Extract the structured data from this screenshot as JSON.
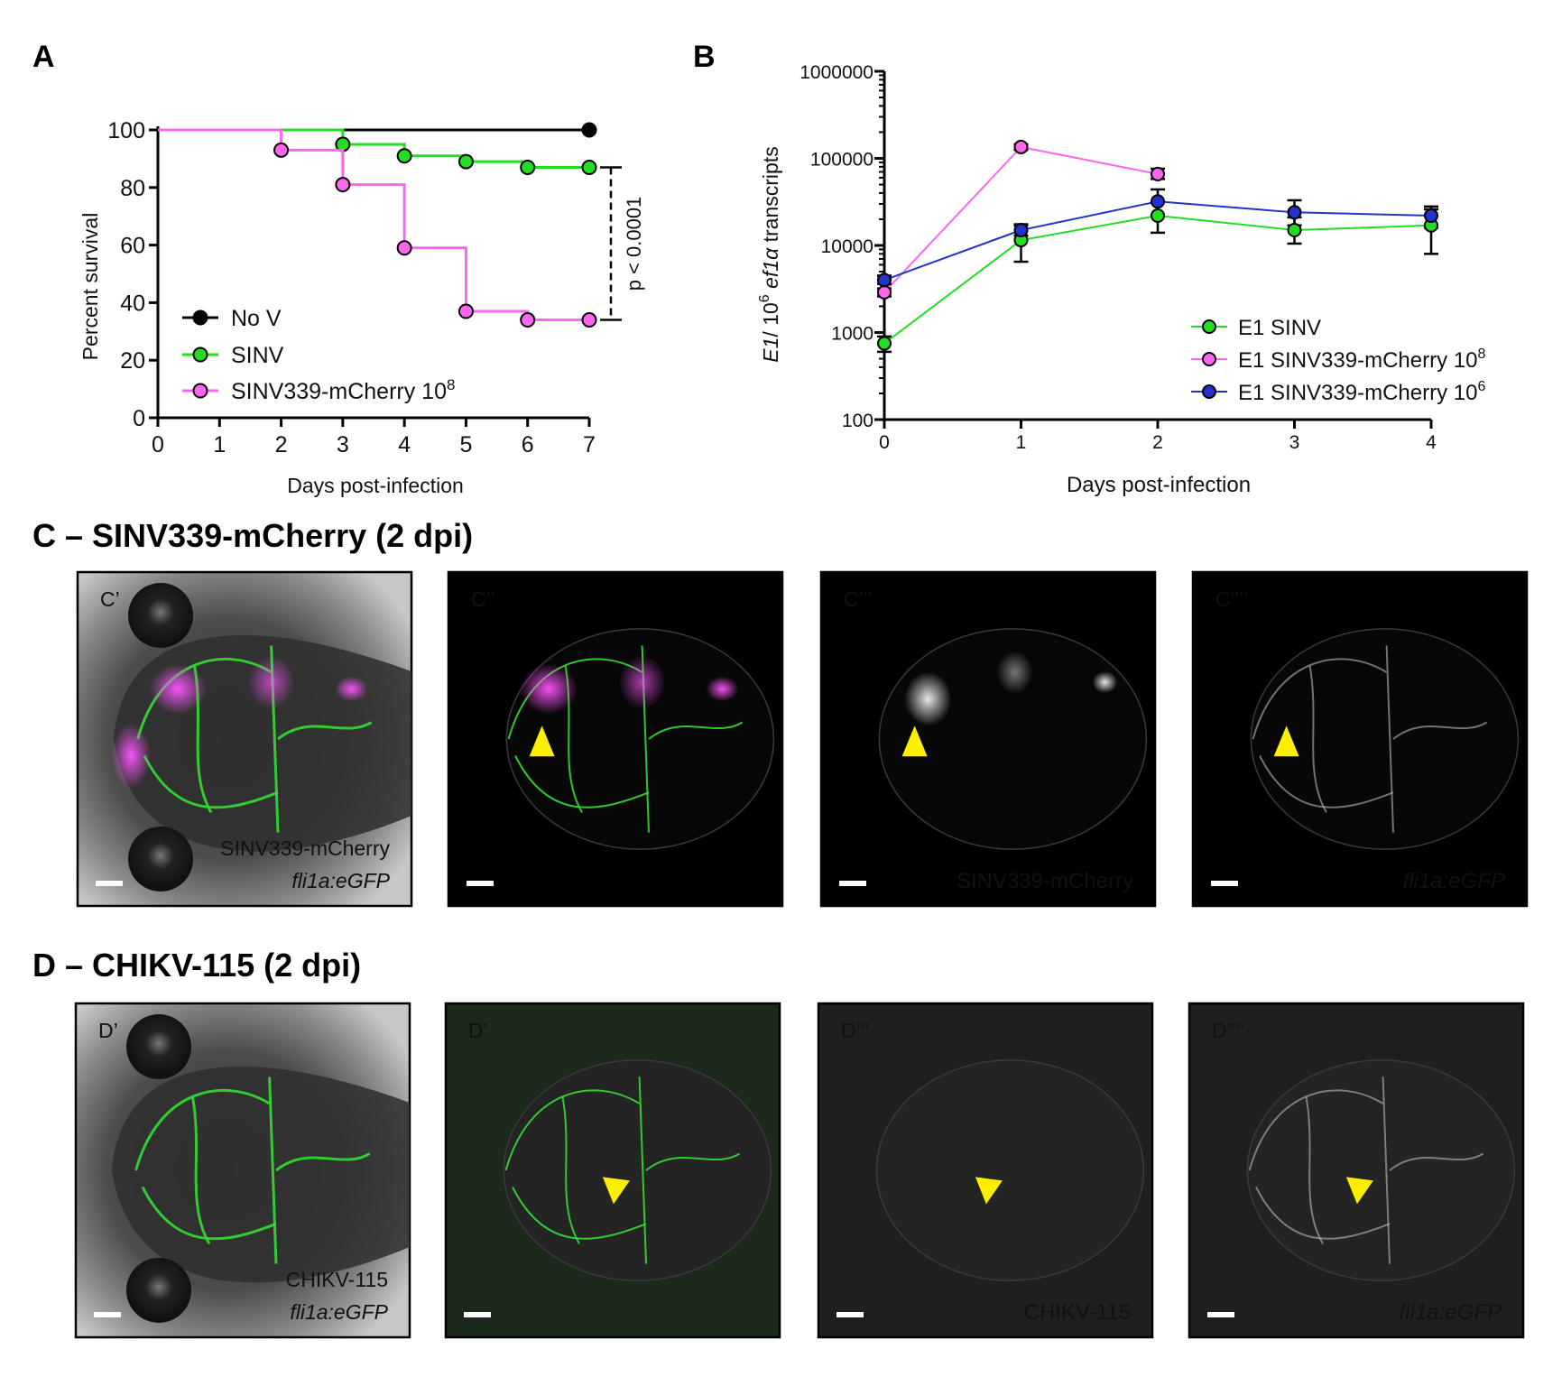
{
  "panels": {
    "A": "A",
    "B": "B",
    "C_title": "C – SINV339-mCherry (2 dpi)",
    "D_title": "D – CHIKV-115 (2 dpi)"
  },
  "colors": {
    "no_v": "#000000",
    "sinv": "#22dd22",
    "mcherry": "#ff66ee",
    "blue": "#2233cc",
    "arrow": "#ffee00",
    "magenta_text": "#ee44ee",
    "green_text": "#22dd22"
  },
  "chart_data": [
    {
      "type": "line",
      "panel": "A",
      "xlabel": "Days post-infection",
      "ylabel": "Percent survival",
      "xlim": [
        0,
        7
      ],
      "ylim": [
        0,
        100
      ],
      "xticks": [
        0,
        1,
        2,
        3,
        4,
        5,
        6,
        7
      ],
      "yticks": [
        0,
        20,
        40,
        60,
        80,
        100
      ],
      "step": true,
      "legend_position": "bottom-left",
      "annotation": "p < 0.0001",
      "series": [
        {
          "name": "No V",
          "color": "#000000",
          "x": [
            0,
            7
          ],
          "y": [
            100,
            100
          ],
          "markers_x": [
            7
          ],
          "markers_y": [
            100
          ]
        },
        {
          "name": "SINV",
          "color": "#22dd22",
          "x": [
            0,
            3,
            4,
            5,
            6,
            7
          ],
          "y": [
            100,
            95,
            91,
            89,
            87,
            87
          ],
          "markers_x": [
            3,
            4,
            5,
            6,
            7
          ],
          "markers_y": [
            95,
            91,
            89,
            87,
            87
          ]
        },
        {
          "name": "SINV339-mCherry 10",
          "sup": "8",
          "color": "#ff66ee",
          "x": [
            0,
            2,
            3,
            4,
            5,
            6,
            7
          ],
          "y": [
            100,
            93,
            81,
            59,
            37,
            34,
            34
          ],
          "markers_x": [
            2,
            3,
            4,
            5,
            6,
            7
          ],
          "markers_y": [
            93,
            81,
            59,
            37,
            34,
            34
          ]
        }
      ]
    },
    {
      "type": "line",
      "panel": "B",
      "xlabel": "Days post-infection",
      "ylabel_parts": [
        "E1",
        "/ 10",
        "6",
        " ef1",
        "α",
        " transcripts"
      ],
      "yscale": "log",
      "xlim": [
        0,
        4
      ],
      "ylim": [
        100,
        1000000
      ],
      "xticks": [
        0,
        1,
        2,
        3,
        4
      ],
      "yticks": [
        100,
        1000,
        10000,
        100000,
        1000000
      ],
      "ytick_labels": [
        "100",
        "1000",
        "10000",
        "100000",
        "1000000"
      ],
      "legend_position": "bottom-right",
      "series": [
        {
          "name": "E1 SINV",
          "sup": "",
          "color": "#22dd22",
          "x": [
            0,
            1,
            2,
            3,
            4
          ],
          "y": [
            750,
            11500,
            22000,
            15000,
            17000
          ],
          "err_low": [
            600,
            6500,
            14000,
            10500,
            8000
          ],
          "err_high": [
            900,
            17000,
            32000,
            21000,
            26000
          ]
        },
        {
          "name": "E1 SINV339-mCherry 10",
          "sup": "8",
          "color": "#ff66ee",
          "x": [
            0,
            1,
            2
          ],
          "y": [
            2900,
            135000,
            66000
          ],
          "err_low": [
            2600,
            125000,
            58000
          ],
          "err_high": [
            3200,
            145000,
            76000
          ]
        },
        {
          "name": "E1 SINV339-mCherry 10",
          "sup": "6",
          "color": "#2233cc",
          "x": [
            0,
            1,
            2,
            3,
            4
          ],
          "y": [
            4000,
            15000,
            32000,
            24000,
            22000
          ],
          "err_low": [
            3600,
            13000,
            22000,
            17000,
            16000
          ],
          "err_high": [
            4500,
            17500,
            44000,
            33000,
            28000
          ]
        }
      ]
    }
  ],
  "images": {
    "C": [
      {
        "label": "C’",
        "text1": "SINV339-mCherry",
        "text2": "fli1a:eGFP",
        "kind": "bright",
        "arrow": false
      },
      {
        "label": "C’’",
        "text1": "",
        "text2": "",
        "kind": "merge",
        "arrow": true
      },
      {
        "label": "C’’’",
        "text1": "SINV339-mCherry",
        "text2": "",
        "kind": "gray",
        "arrow": true
      },
      {
        "label": "C’’’’",
        "text1": "",
        "text2": "fli1a:eGFP",
        "kind": "gray",
        "arrow": true
      }
    ],
    "D": [
      {
        "label": "D’",
        "text1": "CHIKV-115",
        "text2": "fli1a:eGFP",
        "kind": "bright",
        "arrow": false
      },
      {
        "label": "D’",
        "text1": "",
        "text2": "",
        "kind": "merge",
        "arrow": true
      },
      {
        "label": "D’’’",
        "text1": "CHIKV-115",
        "text2": "",
        "kind": "gray",
        "arrow": true
      },
      {
        "label": "D’’’’",
        "text1": "",
        "text2": "fli1a:eGFP",
        "kind": "gray",
        "arrow": true
      }
    ]
  }
}
